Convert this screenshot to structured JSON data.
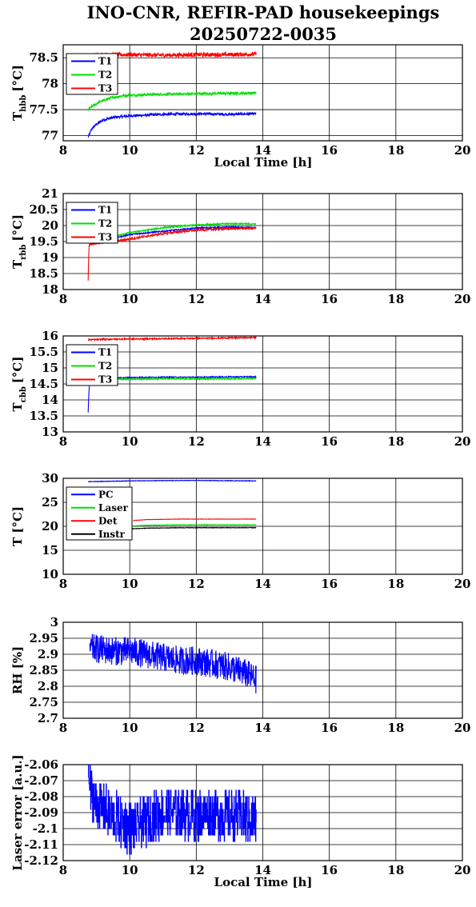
{
  "title_line1": "INO-CNR, REFIR-PAD housekeepings",
  "title_line2": "20250722-0035",
  "chart_data": [
    {
      "type": "line",
      "ylabel_main": "T",
      "ylabel_sub": "hbb",
      "ylabel_unit": "[°C]",
      "xlabel": "Local Time [h]",
      "xlim": [
        8,
        20
      ],
      "xticks": [
        "8",
        "10",
        "12",
        "14",
        "16",
        "18",
        "20"
      ],
      "ylim": [
        76.9,
        78.75
      ],
      "yticks": [
        77,
        77.5,
        78,
        78.5
      ],
      "ytick_labels": [
        "77",
        "77.5",
        "78",
        "78.5"
      ],
      "legend_position": "top-left",
      "series": [
        {
          "name": "T1",
          "color": "#0000ff",
          "noise": 0.025,
          "points": [
            [
              8.75,
              76.97
            ],
            [
              8.85,
              77.12
            ],
            [
              9.0,
              77.22
            ],
            [
              9.2,
              77.3
            ],
            [
              9.5,
              77.35
            ],
            [
              10.0,
              77.38
            ],
            [
              11.0,
              77.41
            ],
            [
              12.0,
              77.42
            ],
            [
              13.0,
              77.41
            ],
            [
              13.8,
              77.42
            ]
          ]
        },
        {
          "name": "T2",
          "color": "#00dd00",
          "noise": 0.025,
          "points": [
            [
              8.75,
              77.5
            ],
            [
              8.9,
              77.58
            ],
            [
              9.1,
              77.65
            ],
            [
              9.4,
              77.72
            ],
            [
              9.8,
              77.77
            ],
            [
              10.5,
              77.79
            ],
            [
              11.5,
              77.8
            ],
            [
              12.5,
              77.81
            ],
            [
              13.8,
              77.82
            ]
          ]
        },
        {
          "name": "T3",
          "color": "#ff0000",
          "noise": 0.04,
          "points": [
            [
              8.9,
              78.55
            ],
            [
              10.0,
              78.56
            ],
            [
              11.0,
              78.55
            ],
            [
              12.0,
              78.56
            ],
            [
              13.0,
              78.56
            ],
            [
              13.8,
              78.57
            ]
          ]
        }
      ]
    },
    {
      "type": "line",
      "ylabel_main": "T",
      "ylabel_sub": "rbb",
      "ylabel_unit": "[°C]",
      "xlabel": "",
      "xlim": [
        8,
        20
      ],
      "xticks": [
        "8",
        "10",
        "12",
        "14",
        "16",
        "18",
        "20"
      ],
      "ylim": [
        18,
        21
      ],
      "yticks": [
        18,
        18.5,
        19,
        19.5,
        20,
        20.5,
        21
      ],
      "ytick_labels": [
        "18",
        "18.5",
        "19",
        "19.5",
        "20",
        "20.5",
        "21"
      ],
      "legend_position": "top-left",
      "series": [
        {
          "name": "T1",
          "color": "#0000ff",
          "noise": 0.02,
          "points": [
            [
              8.75,
              19.5
            ],
            [
              9.0,
              19.5
            ],
            [
              9.5,
              19.6
            ],
            [
              10.0,
              19.72
            ],
            [
              11.0,
              19.82
            ],
            [
              12.0,
              19.92
            ],
            [
              13.0,
              19.95
            ],
            [
              13.8,
              19.93
            ]
          ]
        },
        {
          "name": "T2",
          "color": "#00dd00",
          "noise": 0.02,
          "points": [
            [
              8.75,
              19.5
            ],
            [
              9.0,
              19.55
            ],
            [
              9.5,
              19.65
            ],
            [
              10.0,
              19.78
            ],
            [
              11.0,
              19.93
            ],
            [
              12.0,
              20.02
            ],
            [
              13.0,
              20.06
            ],
            [
              13.8,
              20.05
            ]
          ]
        },
        {
          "name": "T3",
          "color": "#ff0000",
          "noise": 0.03,
          "points": [
            [
              8.75,
              18.3
            ],
            [
              8.76,
              18.8
            ],
            [
              8.78,
              19.4
            ],
            [
              9.0,
              19.45
            ],
            [
              9.5,
              19.5
            ],
            [
              10.0,
              19.58
            ],
            [
              11.0,
              19.75
            ],
            [
              12.0,
              19.86
            ],
            [
              13.0,
              19.9
            ],
            [
              13.8,
              19.92
            ]
          ]
        }
      ]
    },
    {
      "type": "line",
      "ylabel_main": "T",
      "ylabel_sub": "cbb",
      "ylabel_unit": "[°C]",
      "xlabel": "",
      "xlim": [
        8,
        20
      ],
      "xticks": [
        "8",
        "10",
        "12",
        "14",
        "16",
        "18",
        "20"
      ],
      "ylim": [
        13,
        16
      ],
      "yticks": [
        13,
        13.5,
        14,
        14.5,
        15,
        15.5,
        16
      ],
      "ytick_labels": [
        "13",
        "13.5",
        "14",
        "14.5",
        "15",
        "15.5",
        "16"
      ],
      "legend_position": "top-left",
      "series": [
        {
          "name": "T1",
          "color": "#0000ff",
          "noise": 0.015,
          "points": [
            [
              8.75,
              13.6
            ],
            [
              8.77,
              14.2
            ],
            [
              8.8,
              14.6
            ],
            [
              9.0,
              14.68
            ],
            [
              10.0,
              14.7
            ],
            [
              11.0,
              14.71
            ],
            [
              12.0,
              14.71
            ],
            [
              13.0,
              14.72
            ],
            [
              13.8,
              14.72
            ]
          ]
        },
        {
          "name": "T2",
          "color": "#00dd00",
          "noise": 0.02,
          "points": [
            [
              8.75,
              14.55
            ],
            [
              8.8,
              14.7
            ],
            [
              9.0,
              14.66
            ],
            [
              10.0,
              14.65
            ],
            [
              11.0,
              14.66
            ],
            [
              12.0,
              14.66
            ],
            [
              13.0,
              14.66
            ],
            [
              13.8,
              14.67
            ]
          ]
        },
        {
          "name": "T3",
          "color": "#ff0000",
          "noise": 0.02,
          "points": [
            [
              8.75,
              15.88
            ],
            [
              9.5,
              15.9
            ],
            [
              10.5,
              15.91
            ],
            [
              11.5,
              15.92
            ],
            [
              12.5,
              15.93
            ],
            [
              13.8,
              15.95
            ]
          ]
        }
      ]
    },
    {
      "type": "line",
      "ylabel_main": "T [°C]",
      "ylabel_sub": "",
      "ylabel_unit": "",
      "xlabel": "",
      "xlim": [
        8,
        20
      ],
      "xticks": [
        "8",
        "10",
        "12",
        "14",
        "16",
        "18",
        "20"
      ],
      "ylim": [
        10,
        30
      ],
      "yticks": [
        10,
        15,
        20,
        25,
        30
      ],
      "ytick_labels": [
        "10",
        "15",
        "20",
        "25",
        "30"
      ],
      "legend_position": "top-left",
      "series": [
        {
          "name": "PC",
          "color": "#0000ff",
          "noise": 0.05,
          "points": [
            [
              8.75,
              29.3
            ],
            [
              9.5,
              29.4
            ],
            [
              10.5,
              29.5
            ],
            [
              12.0,
              29.55
            ],
            [
              13.0,
              29.5
            ],
            [
              13.8,
              29.45
            ]
          ]
        },
        {
          "name": "Laser",
          "color": "#00dd00",
          "noise": 0.05,
          "points": [
            [
              9.8,
              20.0
            ],
            [
              10.5,
              20.2
            ],
            [
              11.5,
              20.3
            ],
            [
              12.5,
              20.3
            ],
            [
              13.8,
              20.3
            ]
          ]
        },
        {
          "name": "Det",
          "color": "#ff0000",
          "noise": 0.03,
          "points": [
            [
              10.1,
              21.2
            ],
            [
              10.5,
              21.4
            ],
            [
              11.5,
              21.5
            ],
            [
              12.5,
              21.5
            ],
            [
              13.8,
              21.5
            ]
          ]
        },
        {
          "name": "Instr",
          "color": "#000000",
          "noise": 0.05,
          "points": [
            [
              9.8,
              19.4
            ],
            [
              10.5,
              19.6
            ],
            [
              11.5,
              19.7
            ],
            [
              12.5,
              19.7
            ],
            [
              13.8,
              19.7
            ]
          ]
        }
      ]
    },
    {
      "type": "line",
      "ylabel_main": "RH [%]",
      "ylabel_sub": "",
      "ylabel_unit": "",
      "xlabel": "",
      "xlim": [
        8,
        20
      ],
      "xticks": [
        "8",
        "10",
        "12",
        "14",
        "16",
        "18",
        "20"
      ],
      "ylim": [
        2.7,
        3.0
      ],
      "yticks": [
        2.7,
        2.75,
        2.8,
        2.85,
        2.9,
        2.95,
        3.0
      ],
      "ytick_labels": [
        "2.7",
        "2.75",
        "2.8",
        "2.85",
        "2.9",
        "2.95",
        "3"
      ],
      "legend_position": "",
      "series": [
        {
          "name": "",
          "color": "#0000ff",
          "noise": 0.045,
          "points": [
            [
              8.8,
              2.92
            ],
            [
              9.5,
              2.91
            ],
            [
              10.0,
              2.91
            ],
            [
              10.5,
              2.9
            ],
            [
              11.0,
              2.89
            ],
            [
              11.5,
              2.88
            ],
            [
              12.0,
              2.88
            ],
            [
              12.5,
              2.87
            ],
            [
              13.0,
              2.86
            ],
            [
              13.5,
              2.84
            ],
            [
              13.8,
              2.82
            ]
          ]
        }
      ]
    },
    {
      "type": "line",
      "ylabel_main": "Laser error [a.u.]",
      "ylabel_sub": "",
      "ylabel_unit": "",
      "xlabel": "Local Time [h]",
      "xlim": [
        8,
        20
      ],
      "xticks": [
        "8",
        "10",
        "12",
        "14",
        "16",
        "18",
        "20"
      ],
      "ylim": [
        -2.12,
        -2.06
      ],
      "yticks": [
        -2.12,
        -2.11,
        -2.1,
        -2.09,
        -2.08,
        -2.07,
        -2.06
      ],
      "ytick_labels": [
        "-2.12",
        "-2.11",
        "-2.1",
        "-2.09",
        "-2.08",
        "-2.07",
        "-2.06"
      ],
      "legend_position": "",
      "series": [
        {
          "name": "",
          "color": "#0000ff",
          "noise": 0.016,
          "step": 0.004,
          "points": [
            [
              8.75,
              -2.061
            ],
            [
              8.8,
              -2.075
            ],
            [
              9.0,
              -2.085
            ],
            [
              9.5,
              -2.092
            ],
            [
              10.0,
              -2.1
            ],
            [
              10.5,
              -2.095
            ],
            [
              11.0,
              -2.09
            ],
            [
              11.5,
              -2.09
            ],
            [
              12.0,
              -2.092
            ],
            [
              12.5,
              -2.09
            ],
            [
              13.0,
              -2.092
            ],
            [
              13.5,
              -2.093
            ],
            [
              13.8,
              -2.095
            ]
          ]
        }
      ]
    }
  ]
}
